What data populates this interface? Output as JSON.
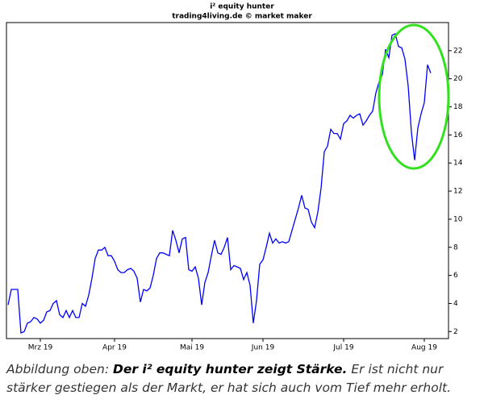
{
  "chart_data": {
    "type": "line",
    "title": "i² equity hunter",
    "subtitle": "trading4living.de © market maker",
    "categories": [
      null,
      null,
      null,
      null,
      null,
      null,
      null,
      null,
      null,
      null,
      "Mrz 19",
      null,
      null,
      null,
      null,
      null,
      null,
      null,
      null,
      null,
      null,
      null,
      null,
      null,
      null,
      null,
      null,
      null,
      null,
      null,
      null,
      null,
      null,
      "Apr 19",
      null,
      null,
      null,
      null,
      null,
      null,
      null,
      null,
      null,
      null,
      null,
      null,
      null,
      null,
      null,
      null,
      null,
      null,
      null,
      null,
      null,
      null,
      null,
      "Mai 19",
      null,
      null,
      null,
      null,
      null,
      null,
      null,
      null,
      null,
      null,
      null,
      null,
      null,
      null,
      null,
      null,
      null,
      null,
      null,
      null,
      null,
      "Jun 19",
      null,
      null,
      null,
      null,
      null,
      null,
      null,
      null,
      null,
      null,
      null,
      null,
      null,
      null,
      null,
      null,
      null,
      null,
      null,
      null,
      null,
      null,
      null,
      null,
      "Jul 19",
      null,
      null,
      null,
      null,
      null,
      null,
      null,
      null,
      null,
      null,
      null,
      null,
      null,
      null,
      null,
      null,
      null,
      null,
      null,
      null,
      null,
      null,
      null,
      null,
      "Aug 19",
      null,
      null
    ],
    "series": [
      {
        "name": "i² equity hunter",
        "color": "#0000ff",
        "values": [
          3.9,
          5.0,
          5.0,
          5.0,
          1.9,
          2.0,
          2.6,
          2.7,
          3.0,
          2.9,
          2.6,
          2.8,
          3.4,
          3.5,
          4.0,
          4.2,
          3.2,
          3.0,
          3.5,
          3.0,
          3.5,
          3.0,
          3.0,
          4.0,
          3.8,
          4.6,
          5.8,
          7.2,
          7.8,
          7.8,
          8.0,
          7.4,
          7.4,
          7.0,
          6.4,
          6.2,
          6.2,
          6.4,
          6.5,
          6.3,
          5.8,
          4.1,
          5.0,
          4.9,
          5.1,
          6.0,
          7.2,
          7.6,
          7.6,
          7.5,
          7.4,
          9.2,
          8.5,
          7.6,
          8.6,
          8.7,
          6.4,
          6.3,
          6.6,
          5.8,
          3.9,
          5.5,
          6.2,
          7.4,
          8.5,
          7.6,
          7.5,
          8.0,
          8.7,
          6.4,
          6.7,
          6.6,
          6.5,
          5.7,
          6.2,
          5.3,
          2.6,
          4.2,
          6.8,
          7.1,
          8.0,
          9.0,
          8.3,
          8.6,
          8.3,
          8.4,
          8.3,
          8.4,
          9.2,
          10.0,
          10.8,
          11.7,
          10.8,
          10.7,
          9.8,
          9.4,
          10.5,
          12.2,
          14.8,
          15.2,
          16.4,
          16.1,
          16.1,
          15.7,
          16.8,
          17.0,
          17.4,
          17.2,
          17.4,
          17.5,
          16.7,
          17.0,
          17.4,
          17.7,
          19.0,
          19.8,
          20.3,
          22.1,
          21.5,
          23.1,
          23.2,
          22.3,
          22.2,
          21.4,
          19.5,
          16.2,
          14.2,
          16.5,
          17.5,
          18.3,
          21.0,
          20.4
        ]
      }
    ],
    "ylim": [
      1.5,
      24
    ],
    "yticks": [
      2,
      4,
      6,
      8,
      10,
      12,
      14,
      16,
      18,
      20,
      22
    ],
    "y_axis_side": "right",
    "grid": false
  },
  "caption": {
    "label": "Abbildung oben:",
    "headline": "Der i² equity hunter zeigt Stärke.",
    "body": "Er ist nicht nur stärker gestiegen als der Markt, er hat sich auch vom Tief mehr erholt."
  }
}
